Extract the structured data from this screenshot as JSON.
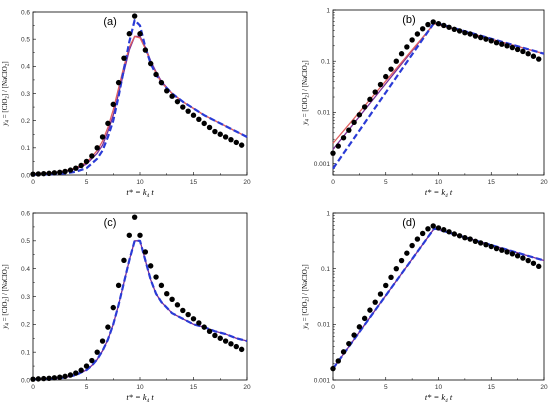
{
  "figure": {
    "x_axis_label": {
      "main": "t* = k",
      "sub": "4",
      "tail": " t"
    },
    "y_axis_label": {
      "pre": "y",
      "pre_sub": "4",
      "mid1": " = [ClO",
      "sub1": "2",
      "mid2": "] / [NaClO",
      "sub2": "2",
      "tail": "]"
    }
  },
  "chart_data": [
    {
      "panel": "(a)",
      "type": "line",
      "yscale": "linear",
      "xlim": [
        0,
        20
      ],
      "ylim": [
        0,
        0.6
      ],
      "xticks": [
        "0",
        "5",
        "10",
        "15",
        "20"
      ],
      "yticks": [
        "0.0",
        "0.1",
        "0.2",
        "0.3",
        "0.4",
        "0.5",
        "0.6"
      ],
      "ytick_values": [
        0,
        0.1,
        0.2,
        0.3,
        0.4,
        0.5,
        0.6
      ],
      "series": [
        {
          "style": "points",
          "color": "#000000",
          "x": [
            0,
            0.5,
            1,
            1.5,
            2,
            2.5,
            3,
            3.5,
            4,
            4.5,
            5,
            5.5,
            6,
            6.5,
            7,
            7.5,
            8,
            8.5,
            9,
            9.5,
            10,
            10.5,
            11,
            11.5,
            12,
            12.5,
            13,
            13.5,
            14,
            14.5,
            15,
            15.5,
            16,
            16.5,
            17,
            17.5,
            18,
            18.5,
            19,
            19.5
          ],
          "y": [
            0.003,
            0.004,
            0.005,
            0.006,
            0.008,
            0.01,
            0.013,
            0.018,
            0.025,
            0.035,
            0.05,
            0.07,
            0.1,
            0.14,
            0.19,
            0.26,
            0.34,
            0.43,
            0.52,
            0.585,
            0.52,
            0.46,
            0.41,
            0.37,
            0.34,
            0.31,
            0.29,
            0.27,
            0.25,
            0.235,
            0.22,
            0.205,
            0.19,
            0.175,
            0.16,
            0.15,
            0.14,
            0.13,
            0.12,
            0.11
          ]
        },
        {
          "style": "solid",
          "color": "#7a2c99",
          "x": [
            0,
            2,
            3,
            4,
            5,
            6,
            6.5,
            7,
            7.5,
            8,
            8.5,
            9,
            9.5,
            10,
            10.5,
            11,
            11.5,
            12,
            13,
            14,
            15,
            16,
            17,
            18,
            19,
            20
          ],
          "y": [
            0.004,
            0.008,
            0.013,
            0.022,
            0.04,
            0.08,
            0.11,
            0.16,
            0.22,
            0.3,
            0.38,
            0.46,
            0.51,
            0.51,
            0.47,
            0.42,
            0.38,
            0.345,
            0.3,
            0.27,
            0.245,
            0.22,
            0.2,
            0.18,
            0.16,
            0.14
          ]
        },
        {
          "style": "solid",
          "color": "#e06060",
          "x": [
            0,
            2,
            3,
            4,
            5,
            6,
            6.5,
            7,
            7.5,
            8,
            8.5,
            9,
            9.5,
            10,
            10.5,
            11,
            11.5,
            12,
            13,
            14,
            15,
            16,
            17,
            18,
            19,
            20
          ],
          "y": [
            0.005,
            0.009,
            0.015,
            0.026,
            0.046,
            0.09,
            0.125,
            0.175,
            0.24,
            0.32,
            0.4,
            0.47,
            0.51,
            0.505,
            0.465,
            0.415,
            0.375,
            0.34,
            0.3,
            0.27,
            0.245,
            0.22,
            0.2,
            0.18,
            0.16,
            0.14
          ]
        },
        {
          "style": "dashed",
          "color": "#2a3bd6",
          "x": [
            0,
            2,
            3,
            4,
            5,
            6,
            6.5,
            7,
            7.5,
            8,
            8.5,
            9,
            9.5,
            10,
            10.5,
            11,
            11.5,
            12,
            13,
            14,
            15,
            16,
            17,
            18,
            19,
            20
          ],
          "y": [
            0.001,
            0.003,
            0.006,
            0.012,
            0.025,
            0.06,
            0.09,
            0.14,
            0.2,
            0.29,
            0.39,
            0.49,
            0.57,
            0.55,
            0.47,
            0.41,
            0.37,
            0.34,
            0.3,
            0.27,
            0.245,
            0.22,
            0.2,
            0.18,
            0.16,
            0.14
          ]
        }
      ]
    },
    {
      "panel": "(b)",
      "type": "line",
      "yscale": "log",
      "xlim": [
        0,
        20
      ],
      "ylim": [
        0.0006,
        1
      ],
      "xticks": [
        "0",
        "5",
        "10",
        "15",
        "20"
      ],
      "yticks": [
        "0.001",
        "0.01",
        "0.1",
        "1"
      ],
      "ytick_values": [
        0.001,
        0.01,
        0.1,
        1
      ],
      "series": [
        {
          "style": "points",
          "color": "#000000",
          "x": [
            0,
            0.5,
            1,
            1.5,
            2,
            2.5,
            3,
            3.5,
            4,
            4.5,
            5,
            5.5,
            6,
            6.5,
            7,
            7.5,
            8,
            8.5,
            9,
            9.5,
            10,
            10.5,
            11,
            11.5,
            12,
            12.5,
            13,
            13.5,
            14,
            14.5,
            15,
            15.5,
            16,
            16.5,
            17,
            17.5,
            18,
            18.5,
            19,
            19.5
          ],
          "y": [
            0.0016,
            0.0022,
            0.0032,
            0.0045,
            0.0064,
            0.009,
            0.0128,
            0.018,
            0.025,
            0.035,
            0.05,
            0.07,
            0.1,
            0.14,
            0.19,
            0.26,
            0.34,
            0.43,
            0.52,
            0.585,
            0.54,
            0.5,
            0.46,
            0.42,
            0.39,
            0.36,
            0.34,
            0.31,
            0.29,
            0.27,
            0.25,
            0.23,
            0.215,
            0.2,
            0.185,
            0.17,
            0.155,
            0.14,
            0.125,
            0.11
          ]
        },
        {
          "style": "solid",
          "color": "#7a2c99",
          "x": [
            0,
            9.6,
            20
          ],
          "y": [
            0.0019,
            0.55,
            0.14
          ]
        },
        {
          "style": "solid",
          "color": "#e06060",
          "x": [
            0,
            9.6,
            20
          ],
          "y": [
            0.0025,
            0.54,
            0.14
          ]
        },
        {
          "style": "dashed",
          "color": "#2a3bd6",
          "x": [
            0,
            9.6,
            20
          ],
          "y": [
            0.0008,
            0.57,
            0.14
          ]
        }
      ]
    },
    {
      "panel": "(c)",
      "type": "line",
      "yscale": "linear",
      "xlim": [
        0,
        20
      ],
      "ylim": [
        0,
        0.6
      ],
      "xticks": [
        "0",
        "5",
        "10",
        "15",
        "20"
      ],
      "yticks": [
        "0.0",
        "0.1",
        "0.2",
        "0.3",
        "0.4",
        "0.5",
        "0.6"
      ],
      "ytick_values": [
        0,
        0.1,
        0.2,
        0.3,
        0.4,
        0.5,
        0.6
      ],
      "series": [
        {
          "style": "points",
          "color": "#000000",
          "x": [
            0,
            0.5,
            1,
            1.5,
            2,
            2.5,
            3,
            3.5,
            4,
            4.5,
            5,
            5.5,
            6,
            6.5,
            7,
            7.5,
            8,
            8.5,
            9,
            9.5,
            10,
            10.5,
            11,
            11.5,
            12,
            12.5,
            13,
            13.5,
            14,
            14.5,
            15,
            15.5,
            16,
            16.5,
            17,
            17.5,
            18,
            18.5,
            19,
            19.5
          ],
          "y": [
            0.003,
            0.004,
            0.005,
            0.006,
            0.008,
            0.01,
            0.013,
            0.018,
            0.025,
            0.035,
            0.05,
            0.07,
            0.1,
            0.14,
            0.19,
            0.26,
            0.34,
            0.43,
            0.52,
            0.585,
            0.52,
            0.46,
            0.41,
            0.37,
            0.34,
            0.31,
            0.29,
            0.27,
            0.25,
            0.235,
            0.22,
            0.205,
            0.19,
            0.175,
            0.16,
            0.15,
            0.14,
            0.13,
            0.12,
            0.11
          ]
        },
        {
          "style": "solid",
          "color": "#7a2c99",
          "x": [
            0,
            2,
            3,
            4,
            5,
            5.5,
            6,
            6.5,
            7,
            7.5,
            8,
            8.5,
            9,
            9.5,
            10,
            10.5,
            11,
            11.5,
            12,
            13,
            14,
            15,
            16,
            17,
            18,
            19,
            20
          ],
          "y": [
            0.002,
            0.005,
            0.009,
            0.018,
            0.036,
            0.052,
            0.074,
            0.105,
            0.145,
            0.2,
            0.27,
            0.35,
            0.43,
            0.5,
            0.5,
            0.43,
            0.36,
            0.31,
            0.28,
            0.24,
            0.22,
            0.2,
            0.19,
            0.175,
            0.165,
            0.15,
            0.14
          ]
        },
        {
          "style": "dashed",
          "color": "#2a3bd6",
          "x": [
            0,
            2,
            3,
            4,
            5,
            5.5,
            6,
            6.5,
            7,
            7.5,
            8,
            8.5,
            9,
            9.5,
            10,
            10.5,
            11,
            11.5,
            12,
            13,
            14,
            15,
            16,
            17,
            18,
            19,
            20
          ],
          "y": [
            0.002,
            0.005,
            0.009,
            0.018,
            0.036,
            0.052,
            0.074,
            0.105,
            0.145,
            0.2,
            0.27,
            0.35,
            0.43,
            0.5,
            0.5,
            0.43,
            0.36,
            0.31,
            0.28,
            0.24,
            0.22,
            0.2,
            0.19,
            0.175,
            0.165,
            0.15,
            0.14
          ]
        }
      ]
    },
    {
      "panel": "(d)",
      "type": "line",
      "yscale": "log",
      "xlim": [
        0,
        20
      ],
      "ylim": [
        0.001,
        1
      ],
      "xticks": [
        "0",
        "5",
        "10",
        "15",
        "20"
      ],
      "yticks": [
        "0.001",
        "0.01",
        "0.1",
        "1"
      ],
      "ytick_values": [
        0.001,
        0.01,
        0.1,
        1
      ],
      "series": [
        {
          "style": "points",
          "color": "#000000",
          "x": [
            0,
            0.5,
            1,
            1.5,
            2,
            2.5,
            3,
            3.5,
            4,
            4.5,
            5,
            5.5,
            6,
            6.5,
            7,
            7.5,
            8,
            8.5,
            9,
            9.5,
            10,
            10.5,
            11,
            11.5,
            12,
            12.5,
            13,
            13.5,
            14,
            14.5,
            15,
            15.5,
            16,
            16.5,
            17,
            17.5,
            18,
            18.5,
            19,
            19.5
          ],
          "y": [
            0.0016,
            0.0022,
            0.0032,
            0.0045,
            0.0064,
            0.009,
            0.0128,
            0.018,
            0.025,
            0.035,
            0.05,
            0.07,
            0.1,
            0.14,
            0.19,
            0.26,
            0.34,
            0.43,
            0.52,
            0.585,
            0.54,
            0.5,
            0.46,
            0.42,
            0.39,
            0.36,
            0.34,
            0.31,
            0.29,
            0.27,
            0.25,
            0.23,
            0.215,
            0.2,
            0.185,
            0.17,
            0.155,
            0.14,
            0.125,
            0.11
          ]
        },
        {
          "style": "solid",
          "color": "#7a2c99",
          "x": [
            0,
            9.6,
            20
          ],
          "y": [
            0.0016,
            0.53,
            0.14
          ]
        },
        {
          "style": "dashed",
          "color": "#2a3bd6",
          "x": [
            0,
            9.6,
            20
          ],
          "y": [
            0.0016,
            0.53,
            0.14
          ]
        }
      ]
    }
  ]
}
